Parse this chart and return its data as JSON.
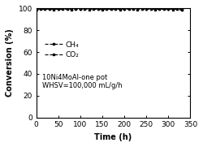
{
  "title": "",
  "xlabel": "Time (h)",
  "ylabel": "Conversion (%)",
  "xlim": [
    0,
    350
  ],
  "ylim": [
    0,
    100
  ],
  "xticks": [
    0,
    50,
    100,
    150,
    200,
    250,
    300,
    350
  ],
  "yticks": [
    0,
    20,
    40,
    60,
    80,
    100
  ],
  "annotation_line1": "10Ni4MoAl-one pot",
  "annotation_line2": "WHSV=100,000 mL/g/h",
  "legend_labels": [
    "CH₄",
    "CO₂"
  ],
  "ch4_color": "black",
  "co2_color": "black",
  "ch4_marker": "s",
  "co2_marker": "s",
  "ch4_linestyle": "--",
  "co2_linestyle": "--",
  "ch4_values_x": [
    0,
    10,
    20,
    30,
    40,
    50,
    60,
    70,
    80,
    90,
    100,
    110,
    120,
    130,
    140,
    150,
    160,
    170,
    180,
    190,
    200,
    210,
    220,
    230,
    240,
    250,
    260,
    270,
    280,
    290,
    300,
    310,
    320,
    330
  ],
  "ch4_values_y": [
    99.5,
    99.7,
    99.6,
    99.8,
    99.5,
    99.7,
    99.6,
    99.8,
    99.5,
    99.7,
    99.6,
    99.8,
    99.5,
    99.7,
    99.6,
    99.5,
    99.7,
    99.6,
    99.8,
    99.5,
    99.7,
    99.6,
    99.8,
    99.5,
    99.7,
    99.6,
    99.8,
    99.5,
    99.7,
    99.6,
    99.8,
    99.5,
    99.7,
    98.8
  ],
  "co2_values_x": [
    0,
    10,
    20,
    30,
    40,
    50,
    60,
    70,
    80,
    90,
    100,
    110,
    120,
    130,
    140,
    150,
    160,
    170,
    180,
    190,
    200,
    210,
    220,
    230,
    240,
    250,
    260,
    270,
    280,
    290,
    300,
    310,
    320,
    330
  ],
  "co2_values_y": [
    99.2,
    99.4,
    99.3,
    99.5,
    99.2,
    99.4,
    99.3,
    99.5,
    99.2,
    99.4,
    99.3,
    99.5,
    99.2,
    99.4,
    99.3,
    99.2,
    99.4,
    99.3,
    99.5,
    99.2,
    99.4,
    99.3,
    99.5,
    99.2,
    99.4,
    99.3,
    99.5,
    99.2,
    99.4,
    99.3,
    99.5,
    99.2,
    99.4,
    98.5
  ],
  "background_color": "#ffffff",
  "fontsize_label": 7,
  "fontsize_tick": 6.5,
  "fontsize_annotation": 6,
  "fontsize_legend": 6.5,
  "marker_size": 2,
  "line_width": 0.8
}
